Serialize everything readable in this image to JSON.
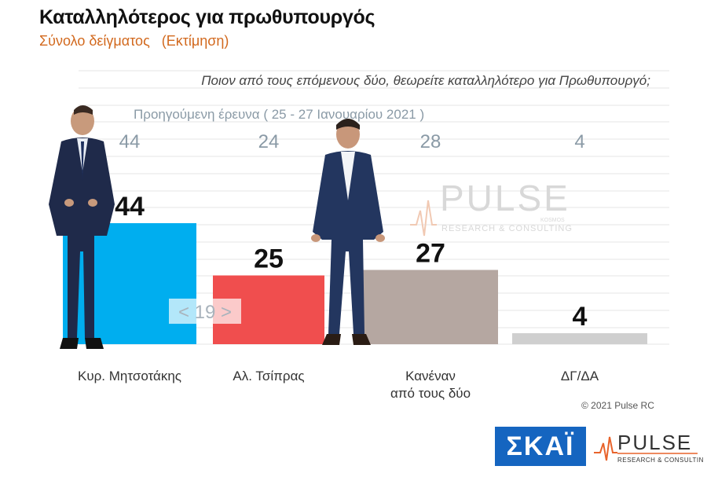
{
  "header": {
    "title": "Καταλληλότερος για πρωθυπουργός",
    "subtitle": "Σύνολο δείγματος   (Εκτίμηση)"
  },
  "question": "Ποιον από τους επόμενους δύο, θεωρείτε καταλληλότερο για Πρωθυπουργό;",
  "previous_survey_label": "Προηγούμενη έρευνα  ( 25 - 27 Ιανουαρίου  2021 )",
  "gap_label": "< 19 >",
  "watermark": {
    "name": "PULSE",
    "sub": "RESEARCH & CONSULTING",
    "small": "KOSMOS"
  },
  "copyright": "© 2021 Pulse RC",
  "logos": {
    "skai": "ΣΚΑΪ",
    "pulse": "PULSE",
    "pulse_sub": "RESEARCH & CONSULTING"
  },
  "colors": {
    "mitsotakis": "#00aeef",
    "tsipras": "#f04e4e",
    "none": "#b5a7a1",
    "dk": "#cfcfcf",
    "prev_values": "#8a9aa6",
    "subtitle": "#d2691e",
    "skai_bg": "#1565c0"
  },
  "chart_data": {
    "type": "bar",
    "categories": [
      "Κυρ. Μητσοτάκης",
      "Αλ. Τσίπρας",
      "Κανέναν\nαπό τους δύο",
      "ΔΓ/ΔΑ"
    ],
    "series": [
      {
        "name": "",
        "values": [
          44,
          25,
          27,
          4
        ]
      }
    ],
    "previous_values": [
      44,
      24,
      28,
      4
    ],
    "ylim": [
      0,
      70
    ],
    "grid": true,
    "legend": "none"
  }
}
